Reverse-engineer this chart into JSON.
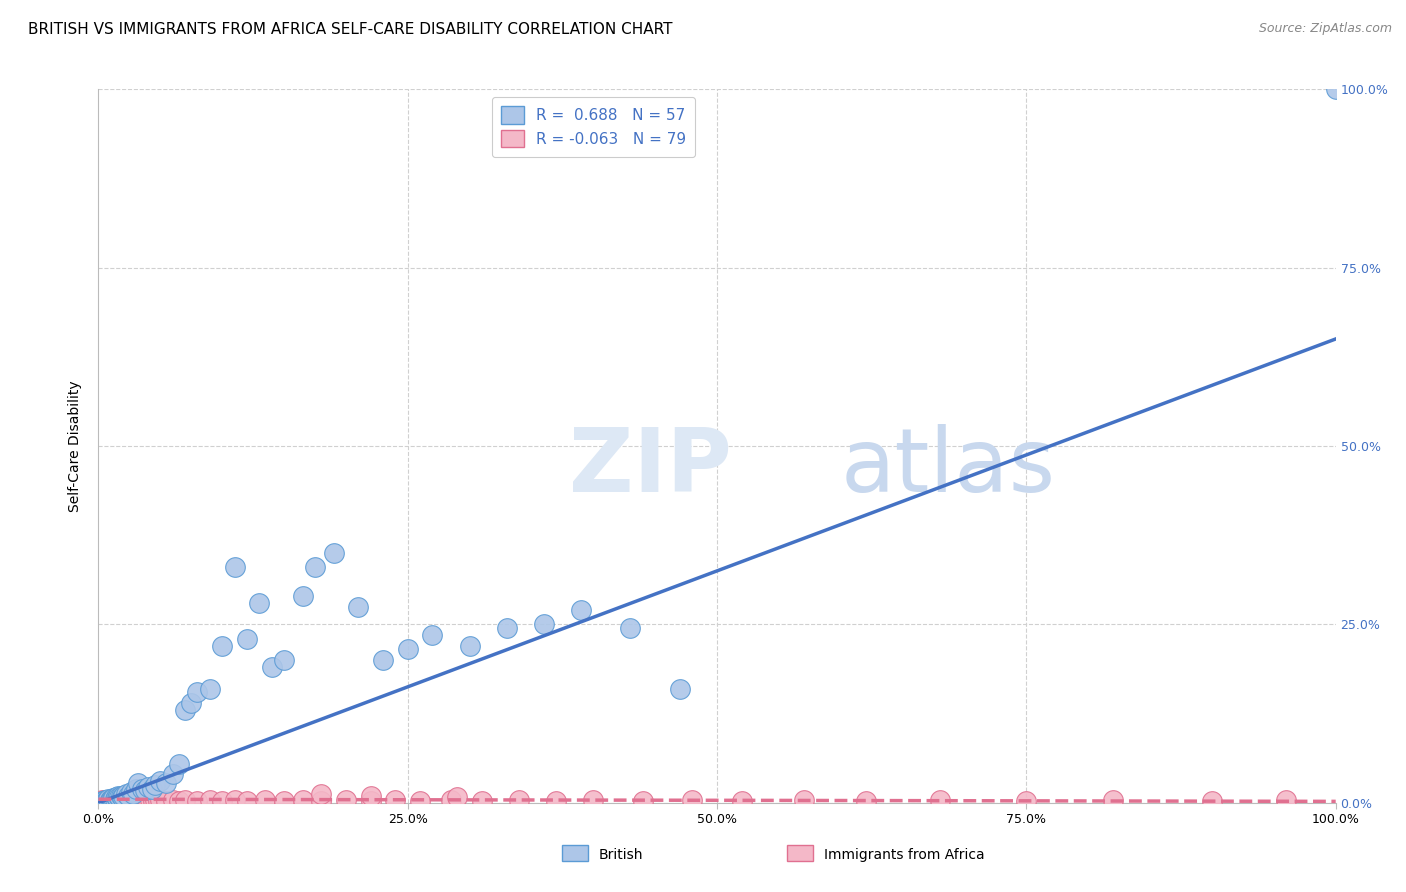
{
  "title": "BRITISH VS IMMIGRANTS FROM AFRICA SELF-CARE DISABILITY CORRELATION CHART",
  "source": "Source: ZipAtlas.com",
  "ylabel": "Self-Care Disability",
  "xlim": [
    0,
    1.0
  ],
  "ylim": [
    0,
    1.0
  ],
  "british_R": 0.688,
  "british_N": 57,
  "africa_R": -0.063,
  "africa_N": 79,
  "british_color": "#adc6e8",
  "british_edge_color": "#5b9bd5",
  "british_line_color": "#4472c4",
  "africa_color": "#f4b8c8",
  "africa_edge_color": "#e07090",
  "africa_line_color": "#e07090",
  "grid_color": "#d0d0d0",
  "watermark_zip_color": "#dde8f5",
  "watermark_atlas_color": "#c8d8ee",
  "title_fontsize": 11,
  "source_fontsize": 9,
  "british_x": [
    0.003,
    0.004,
    0.005,
    0.006,
    0.007,
    0.008,
    0.009,
    0.01,
    0.011,
    0.012,
    0.013,
    0.014,
    0.015,
    0.016,
    0.017,
    0.018,
    0.019,
    0.02,
    0.022,
    0.024,
    0.026,
    0.028,
    0.03,
    0.032,
    0.035,
    0.038,
    0.04,
    0.043,
    0.046,
    0.05,
    0.055,
    0.06,
    0.065,
    0.07,
    0.075,
    0.08,
    0.09,
    0.1,
    0.11,
    0.12,
    0.13,
    0.14,
    0.15,
    0.165,
    0.175,
    0.19,
    0.21,
    0.23,
    0.25,
    0.27,
    0.3,
    0.33,
    0.36,
    0.39,
    0.43,
    0.47,
    1.0
  ],
  "british_y": [
    0.002,
    0.003,
    0.004,
    0.003,
    0.004,
    0.005,
    0.004,
    0.005,
    0.006,
    0.007,
    0.006,
    0.008,
    0.007,
    0.009,
    0.008,
    0.01,
    0.008,
    0.01,
    0.012,
    0.01,
    0.015,
    0.013,
    0.02,
    0.028,
    0.02,
    0.018,
    0.022,
    0.02,
    0.025,
    0.03,
    0.028,
    0.04,
    0.055,
    0.13,
    0.14,
    0.155,
    0.16,
    0.22,
    0.33,
    0.23,
    0.28,
    0.19,
    0.2,
    0.29,
    0.33,
    0.35,
    0.275,
    0.2,
    0.215,
    0.235,
    0.22,
    0.245,
    0.25,
    0.27,
    0.245,
    0.16,
    1.0
  ],
  "africa_x": [
    0.002,
    0.003,
    0.004,
    0.005,
    0.006,
    0.007,
    0.008,
    0.009,
    0.01,
    0.011,
    0.012,
    0.013,
    0.014,
    0.015,
    0.016,
    0.017,
    0.018,
    0.019,
    0.02,
    0.021,
    0.022,
    0.023,
    0.024,
    0.025,
    0.026,
    0.027,
    0.028,
    0.029,
    0.03,
    0.031,
    0.032,
    0.033,
    0.034,
    0.035,
    0.036,
    0.037,
    0.038,
    0.039,
    0.04,
    0.042,
    0.044,
    0.046,
    0.048,
    0.05,
    0.055,
    0.06,
    0.065,
    0.07,
    0.08,
    0.09,
    0.1,
    0.11,
    0.12,
    0.135,
    0.15,
    0.165,
    0.18,
    0.2,
    0.22,
    0.24,
    0.26,
    0.285,
    0.31,
    0.34,
    0.37,
    0.4,
    0.44,
    0.48,
    0.52,
    0.57,
    0.62,
    0.68,
    0.75,
    0.82,
    0.9,
    0.96,
    0.18,
    0.22,
    0.29
  ],
  "africa_y": [
    0.003,
    0.004,
    0.003,
    0.004,
    0.003,
    0.004,
    0.003,
    0.004,
    0.003,
    0.004,
    0.003,
    0.004,
    0.003,
    0.004,
    0.003,
    0.004,
    0.003,
    0.004,
    0.003,
    0.004,
    0.003,
    0.004,
    0.003,
    0.004,
    0.003,
    0.004,
    0.003,
    0.004,
    0.003,
    0.004,
    0.003,
    0.004,
    0.003,
    0.004,
    0.003,
    0.004,
    0.003,
    0.004,
    0.003,
    0.004,
    0.003,
    0.004,
    0.003,
    0.004,
    0.003,
    0.004,
    0.003,
    0.004,
    0.003,
    0.004,
    0.003,
    0.004,
    0.003,
    0.004,
    0.003,
    0.004,
    0.003,
    0.004,
    0.003,
    0.004,
    0.003,
    0.004,
    0.003,
    0.004,
    0.003,
    0.004,
    0.003,
    0.004,
    0.003,
    0.004,
    0.003,
    0.004,
    0.003,
    0.004,
    0.003,
    0.004,
    0.012,
    0.01,
    0.008
  ],
  "brit_line_x0": 0.0,
  "brit_line_y0": 0.0,
  "brit_line_x1": 1.0,
  "brit_line_y1": 0.65,
  "afr_line_x0": 0.0,
  "afr_line_y0": 0.005,
  "afr_line_x1": 1.0,
  "afr_line_y1": 0.002
}
